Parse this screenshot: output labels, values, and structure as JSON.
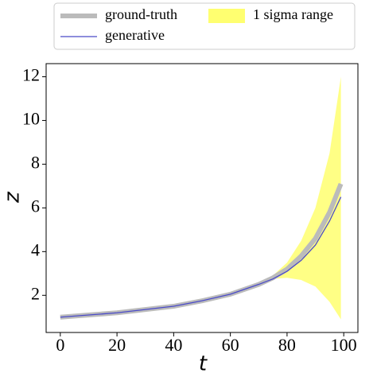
{
  "chart_data": {
    "type": "line",
    "x": [
      0,
      10,
      20,
      30,
      40,
      50,
      60,
      70,
      75,
      80,
      85,
      90,
      95,
      99
    ],
    "xlabel": "t",
    "ylabel": "z",
    "xlim": [
      -5,
      105
    ],
    "ylim": [
      0.3,
      12.6
    ],
    "xticks": [
      0,
      20,
      40,
      60,
      80,
      100
    ],
    "yticks": [
      2,
      4,
      6,
      8,
      10,
      12
    ],
    "legend": "top",
    "series": [
      {
        "name": "ground-truth",
        "color": "#bbbbbb",
        "values": [
          1.0,
          1.1,
          1.2,
          1.35,
          1.5,
          1.75,
          2.05,
          2.5,
          2.8,
          3.2,
          3.8,
          4.6,
          5.8,
          7.1
        ]
      },
      {
        "name": "generative",
        "color": "#4b4bc8",
        "values": [
          1.0,
          1.1,
          1.2,
          1.35,
          1.5,
          1.75,
          2.05,
          2.5,
          2.75,
          3.1,
          3.6,
          4.3,
          5.4,
          6.5
        ]
      },
      {
        "name": "1 sigma range",
        "color": "#ffff70",
        "upper": [
          1.02,
          1.12,
          1.22,
          1.37,
          1.52,
          1.77,
          2.08,
          2.55,
          2.9,
          3.5,
          4.5,
          6.0,
          8.5,
          12.0
        ],
        "lower": [
          0.98,
          1.08,
          1.18,
          1.33,
          1.48,
          1.73,
          2.02,
          2.45,
          2.75,
          2.8,
          2.7,
          2.4,
          1.7,
          0.9
        ]
      }
    ]
  }
}
